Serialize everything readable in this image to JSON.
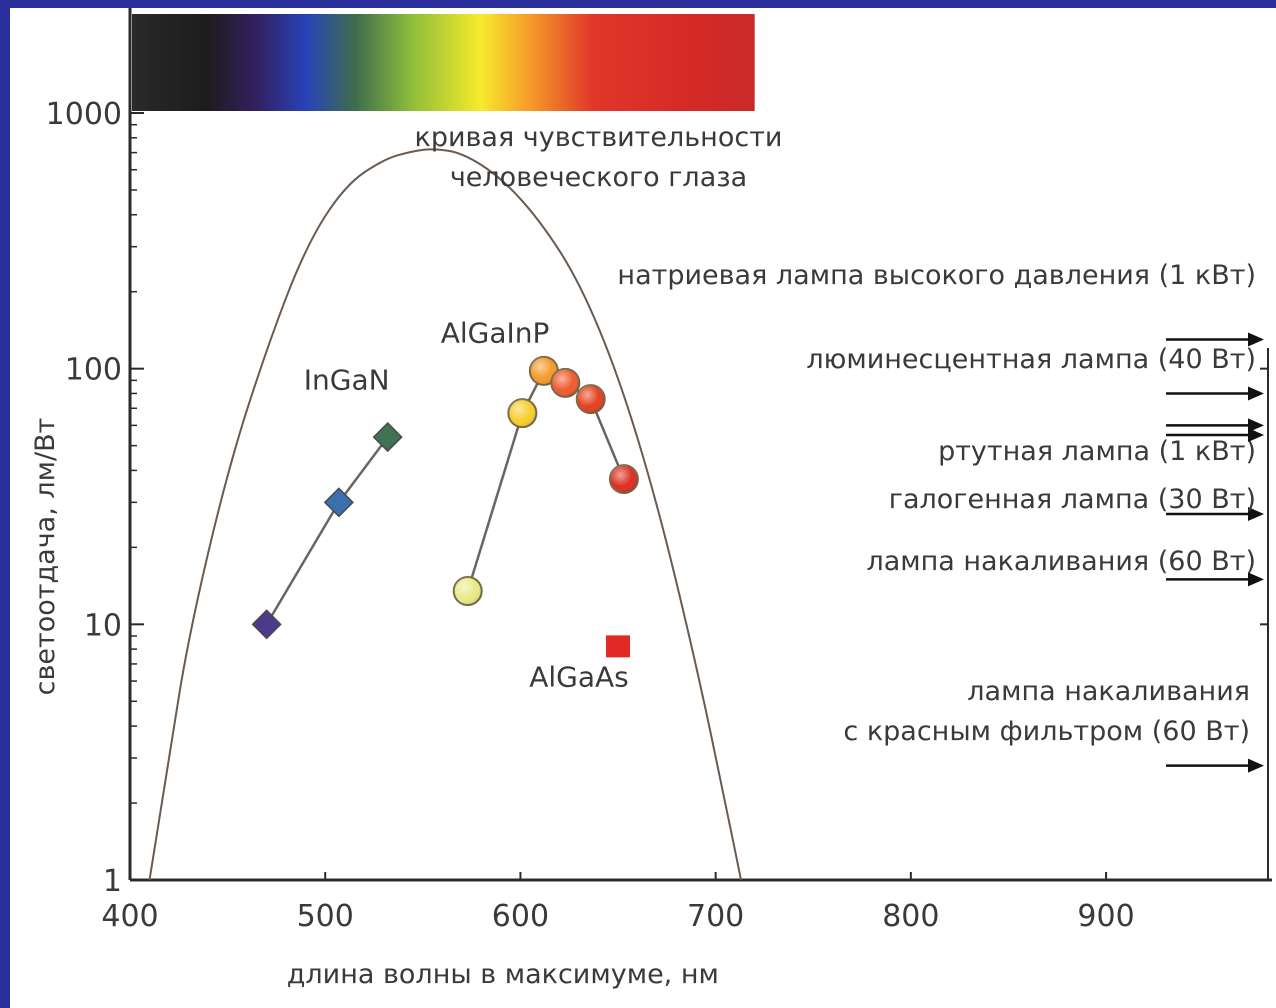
{
  "chart_data": {
    "type": "scatter",
    "xlabel": "длина волны в максимуме, нм",
    "ylabel": "светоотдача, лм/Вт",
    "xlim": [
      400,
      985
    ],
    "ylim": [
      1,
      1000
    ],
    "y_scale": "log",
    "x_ticks": [
      {
        "value": 400,
        "label": "400"
      },
      {
        "value": 500,
        "label": "500"
      },
      {
        "value": 600,
        "label": "600"
      },
      {
        "value": 700,
        "label": "700"
      },
      {
        "value": 800,
        "label": "800"
      },
      {
        "value": 900,
        "label": "900"
      }
    ],
    "y_ticks": [
      {
        "value": 1,
        "label": "1"
      },
      {
        "value": 10,
        "label": "10"
      },
      {
        "value": 100,
        "label": "100"
      },
      {
        "value": 1000,
        "label": "1000"
      }
    ],
    "spectrum_range": [
      400,
      720
    ],
    "eye_curve": {
      "label_lines": [
        "кривая чувствительности",
        "человеческого глаза"
      ],
      "points": [
        [
          410,
          1
        ],
        [
          420,
          3
        ],
        [
          430,
          9
        ],
        [
          450,
          40
        ],
        [
          470,
          120
        ],
        [
          490,
          300
        ],
        [
          510,
          520
        ],
        [
          530,
          660
        ],
        [
          545,
          710
        ],
        [
          555,
          725
        ],
        [
          570,
          700
        ],
        [
          590,
          560
        ],
        [
          610,
          380
        ],
        [
          630,
          220
        ],
        [
          650,
          95
        ],
        [
          670,
          30
        ],
        [
          690,
          7
        ],
        [
          705,
          2
        ],
        [
          713,
          1
        ]
      ]
    },
    "series": [
      {
        "name": "InGaN",
        "marker": "diamond",
        "connected": true,
        "points": [
          {
            "x": 470,
            "y": 10,
            "color": "#4b3a8e"
          },
          {
            "x": 507,
            "y": 30,
            "color": "#3a6fb0"
          },
          {
            "x": 532,
            "y": 54,
            "color": "#3f7352"
          }
        ]
      },
      {
        "name": "AlGaInP",
        "marker": "circle",
        "connected": true,
        "points": [
          {
            "x": 573,
            "y": 13.5,
            "color": "#e8ea88"
          },
          {
            "x": 601,
            "y": 67,
            "color": "#f6cf2d"
          },
          {
            "x": 612,
            "y": 98,
            "color": "#f59a2a"
          },
          {
            "x": 623,
            "y": 88,
            "color": "#ee5b2c"
          },
          {
            "x": 636,
            "y": 76,
            "color": "#e5401f"
          },
          {
            "x": 653,
            "y": 37,
            "color": "#dc2f22"
          }
        ]
      },
      {
        "name": "AlGaAs",
        "marker": "square",
        "connected": false,
        "points": [
          {
            "x": 650,
            "y": 8.2,
            "color": "#e02a23"
          }
        ]
      }
    ],
    "reference_lamps": [
      {
        "lines": [
          "натриевая лампа высокого давления (1 кВт)"
        ],
        "y": 130
      },
      {
        "lines": [
          "люминесцентная лампа (40 Вт)"
        ],
        "y": 80
      },
      {
        "lines": [
          "ртутная лампа (1 кВт)"
        ],
        "y": 60
      },
      {
        "lines": [
          "галогенная лампа (30 Вт)"
        ],
        "y": 27
      },
      {
        "lines": [
          "лампа накаливания (60 Вт)"
        ],
        "y": 15
      },
      {
        "lines": [
          "лампа накаливания",
          "с красным фильтром (60 Вт)"
        ],
        "y": 2.8
      }
    ],
    "colors": {
      "background": "#2a2f9c",
      "panel": "#ffffff",
      "axis": "#2b2b2b",
      "curve": "#6b5a50",
      "connector": "#6b6560"
    }
  }
}
